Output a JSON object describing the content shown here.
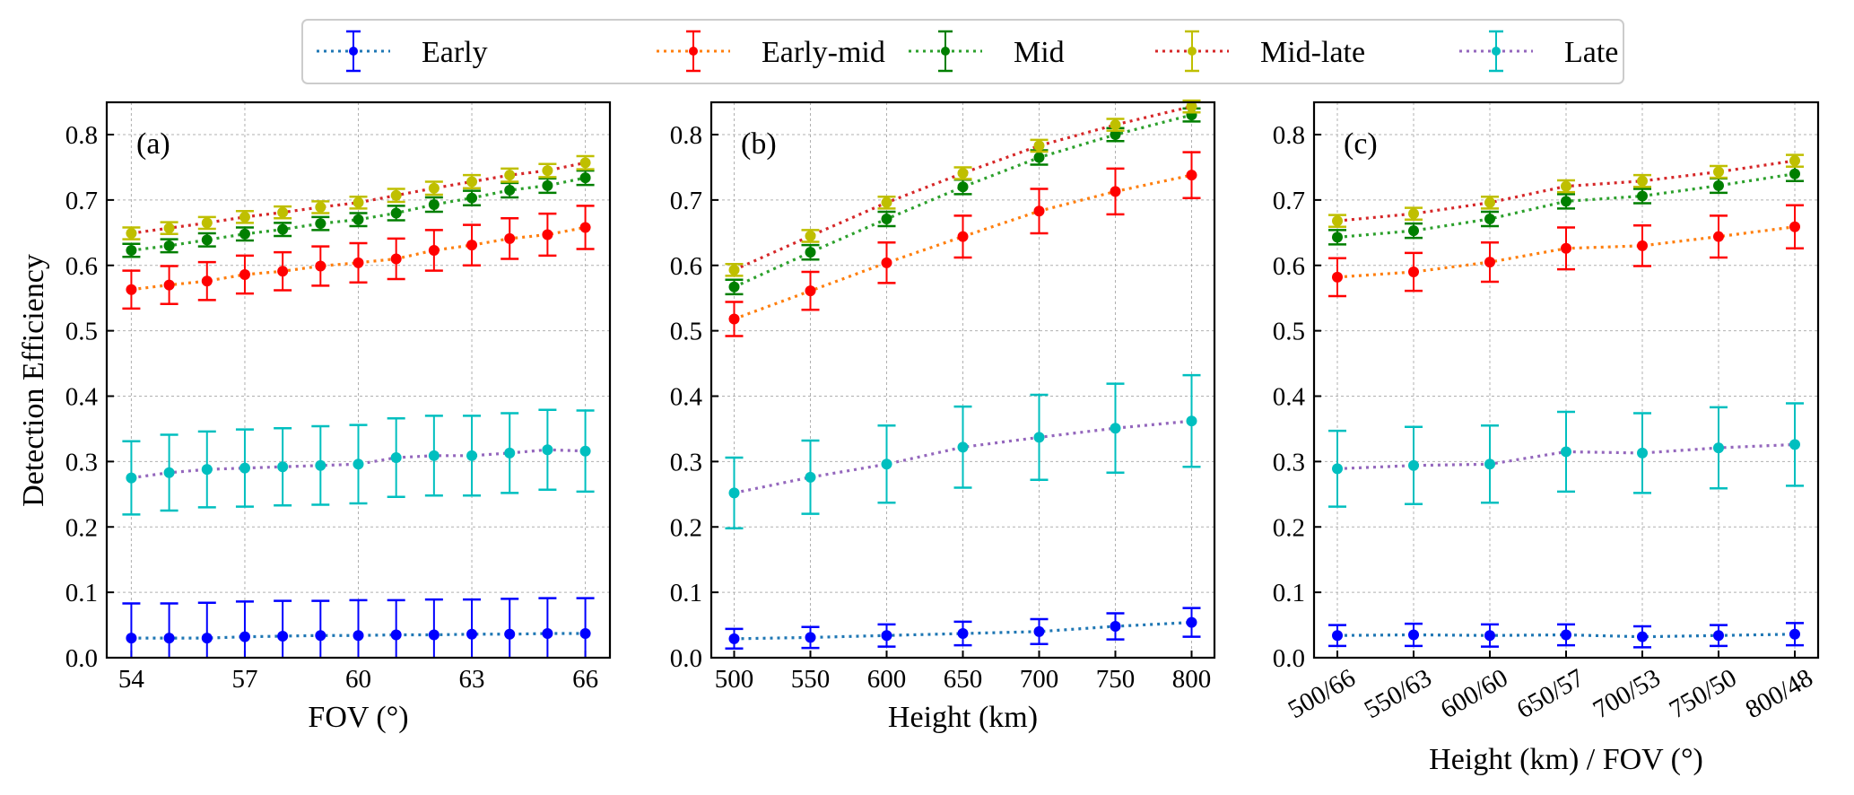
{
  "legend": {
    "placement": "top-center",
    "entries": [
      {
        "name": "Early",
        "line_color": "#1f77b4",
        "marker_color": "#0000ff"
      },
      {
        "name": "Early-mid",
        "line_color": "#ff7f0e",
        "marker_color": "#ff0000"
      },
      {
        "name": "Mid",
        "line_color": "#2ca02c",
        "marker_color": "#007f00"
      },
      {
        "name": "Mid-late",
        "line_color": "#d62728",
        "marker_color": "#bfbf00"
      },
      {
        "name": "Late",
        "line_color": "#9467bd",
        "marker_color": "#00bfbf"
      }
    ]
  },
  "chart_data": [
    {
      "type": "line",
      "panel_label": "(a)",
      "title": "",
      "xlabel": "FOV (°)",
      "ylabel": "Detection Efficiency",
      "x": [
        54,
        55,
        56,
        57,
        58,
        59,
        60,
        61,
        62,
        63,
        64,
        65,
        66
      ],
      "xticks": [
        54,
        57,
        60,
        63,
        66
      ],
      "xtick_labels": [
        "54",
        "57",
        "60",
        "63",
        "66"
      ],
      "xlim": [
        53.35,
        66.65
      ],
      "ylim": [
        0,
        0.85
      ],
      "yticks": [
        0.0,
        0.1,
        0.2,
        0.3,
        0.4,
        0.5,
        0.6,
        0.7,
        0.8
      ],
      "ytick_labels": [
        "0.0",
        "0.1",
        "0.2",
        "0.3",
        "0.4",
        "0.5",
        "0.6",
        "0.7",
        "0.8"
      ],
      "grid": true,
      "series": [
        {
          "name": "Early",
          "values": [
            0.03,
            0.03,
            0.03,
            0.032,
            0.033,
            0.034,
            0.034,
            0.035,
            0.035,
            0.036,
            0.036,
            0.037,
            0.037
          ],
          "err": [
            0.053,
            0.053,
            0.054,
            0.054,
            0.054,
            0.053,
            0.054,
            0.053,
            0.054,
            0.053,
            0.054,
            0.054,
            0.054
          ]
        },
        {
          "name": "Early-mid",
          "values": [
            0.563,
            0.57,
            0.576,
            0.586,
            0.591,
            0.599,
            0.604,
            0.61,
            0.623,
            0.631,
            0.641,
            0.647,
            0.658
          ],
          "err": [
            0.029,
            0.029,
            0.029,
            0.029,
            0.029,
            0.03,
            0.03,
            0.031,
            0.031,
            0.031,
            0.031,
            0.032,
            0.033
          ]
        },
        {
          "name": "Mid",
          "values": [
            0.623,
            0.63,
            0.639,
            0.648,
            0.655,
            0.664,
            0.67,
            0.68,
            0.693,
            0.703,
            0.715,
            0.722,
            0.734
          ],
          "err": [
            0.01,
            0.01,
            0.01,
            0.01,
            0.01,
            0.01,
            0.01,
            0.011,
            0.011,
            0.011,
            0.011,
            0.011,
            0.011
          ]
        },
        {
          "name": "Mid-late",
          "values": [
            0.649,
            0.657,
            0.665,
            0.674,
            0.681,
            0.689,
            0.696,
            0.707,
            0.718,
            0.728,
            0.738,
            0.745,
            0.757
          ],
          "err": [
            0.009,
            0.009,
            0.009,
            0.009,
            0.009,
            0.009,
            0.009,
            0.01,
            0.01,
            0.01,
            0.01,
            0.01,
            0.01
          ]
        },
        {
          "name": "Late",
          "values": [
            0.275,
            0.283,
            0.288,
            0.29,
            0.292,
            0.294,
            0.296,
            0.306,
            0.309,
            0.309,
            0.313,
            0.318,
            0.316
          ],
          "err": [
            0.056,
            0.058,
            0.058,
            0.059,
            0.059,
            0.06,
            0.06,
            0.06,
            0.061,
            0.061,
            0.061,
            0.061,
            0.062
          ]
        }
      ]
    },
    {
      "type": "line",
      "panel_label": "(b)",
      "title": "",
      "xlabel": "Height (km)",
      "ylabel": "",
      "x": [
        500,
        550,
        600,
        650,
        700,
        750,
        800
      ],
      "xticks": [
        500,
        550,
        600,
        650,
        700,
        750,
        800
      ],
      "xtick_labels": [
        "500",
        "550",
        "600",
        "650",
        "700",
        "750",
        "800"
      ],
      "xlim": [
        485,
        815
      ],
      "ylim": [
        0,
        0.85
      ],
      "yticks": [
        0.0,
        0.1,
        0.2,
        0.3,
        0.4,
        0.5,
        0.6,
        0.7,
        0.8
      ],
      "ytick_labels": [
        "0.0",
        "0.1",
        "0.2",
        "0.3",
        "0.4",
        "0.5",
        "0.6",
        "0.7",
        "0.8"
      ],
      "grid": true,
      "series": [
        {
          "name": "Early",
          "values": [
            0.029,
            0.031,
            0.034,
            0.037,
            0.04,
            0.048,
            0.054
          ],
          "err": [
            0.015,
            0.016,
            0.017,
            0.018,
            0.019,
            0.02,
            0.022
          ]
        },
        {
          "name": "Early-mid",
          "values": [
            0.518,
            0.561,
            0.604,
            0.644,
            0.683,
            0.713,
            0.738
          ],
          "err": [
            0.026,
            0.029,
            0.031,
            0.032,
            0.034,
            0.035,
            0.035
          ]
        },
        {
          "name": "Mid",
          "values": [
            0.567,
            0.62,
            0.671,
            0.72,
            0.765,
            0.8,
            0.83
          ],
          "err": [
            0.011,
            0.011,
            0.011,
            0.011,
            0.011,
            0.01,
            0.01
          ]
        },
        {
          "name": "Mid-late",
          "values": [
            0.593,
            0.645,
            0.696,
            0.741,
            0.783,
            0.815,
            0.843
          ],
          "err": [
            0.009,
            0.009,
            0.009,
            0.009,
            0.009,
            0.009,
            0.009
          ]
        },
        {
          "name": "Late",
          "values": [
            0.252,
            0.276,
            0.296,
            0.322,
            0.337,
            0.351,
            0.362
          ],
          "err": [
            0.054,
            0.056,
            0.059,
            0.062,
            0.065,
            0.068,
            0.07
          ]
        }
      ]
    },
    {
      "type": "line",
      "panel_label": "(c)",
      "title": "",
      "xlabel": "Height (km) / FOV (°)",
      "ylabel": "",
      "categories": [
        "500/66",
        "550/63",
        "600/60",
        "650/57",
        "700/53",
        "750/50",
        "800/48"
      ],
      "xtick_rotation_deg": 30,
      "ylim": [
        0,
        0.85
      ],
      "yticks": [
        0.0,
        0.1,
        0.2,
        0.3,
        0.4,
        0.5,
        0.6,
        0.7,
        0.8
      ],
      "ytick_labels": [
        "0.0",
        "0.1",
        "0.2",
        "0.3",
        "0.4",
        "0.5",
        "0.6",
        "0.7",
        "0.8"
      ],
      "grid": true,
      "series": [
        {
          "name": "Early",
          "values": [
            0.034,
            0.035,
            0.034,
            0.035,
            0.032,
            0.034,
            0.036
          ],
          "err": [
            0.016,
            0.017,
            0.017,
            0.016,
            0.016,
            0.016,
            0.017
          ]
        },
        {
          "name": "Early-mid",
          "values": [
            0.582,
            0.59,
            0.605,
            0.626,
            0.63,
            0.644,
            0.659
          ],
          "err": [
            0.029,
            0.029,
            0.03,
            0.032,
            0.031,
            0.032,
            0.033
          ]
        },
        {
          "name": "Mid",
          "values": [
            0.643,
            0.653,
            0.671,
            0.698,
            0.706,
            0.722,
            0.74
          ],
          "err": [
            0.011,
            0.011,
            0.011,
            0.011,
            0.011,
            0.011,
            0.011
          ]
        },
        {
          "name": "Mid-late",
          "values": [
            0.668,
            0.679,
            0.696,
            0.721,
            0.729,
            0.743,
            0.76
          ],
          "err": [
            0.009,
            0.009,
            0.009,
            0.009,
            0.009,
            0.009,
            0.009
          ]
        },
        {
          "name": "Late",
          "values": [
            0.289,
            0.294,
            0.296,
            0.315,
            0.313,
            0.321,
            0.326
          ],
          "err": [
            0.058,
            0.059,
            0.059,
            0.061,
            0.061,
            0.062,
            0.063
          ]
        }
      ]
    }
  ]
}
